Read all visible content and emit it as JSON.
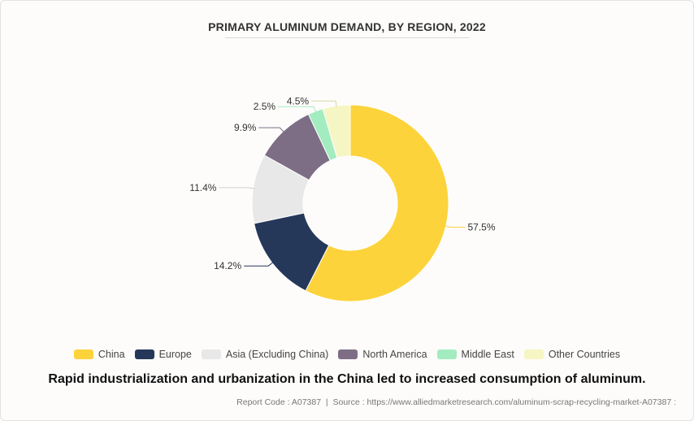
{
  "chart_data": {
    "type": "pie",
    "title": "PRIMARY ALUMINUM DEMAND, BY REGION, 2022",
    "categories": [
      "China",
      "Europe",
      "Asia (Excluding China)",
      "North America",
      "Middle East",
      "Other Countries"
    ],
    "values": [
      57.5,
      14.2,
      11.4,
      9.9,
      2.5,
      4.5
    ],
    "labels": [
      "57.5%",
      "14.2%",
      "11.4%",
      "9.9%",
      "2.5%",
      "4.5%"
    ],
    "colors": [
      "#fdd33b",
      "#26385a",
      "#e8e8e8",
      "#7d6e85",
      "#a3ecbf",
      "#f6f5c4"
    ],
    "legend_position": "bottom"
  },
  "caption": "Rapid industrialization and urbanization in the China led to increased consumption of aluminum.",
  "source": {
    "report_label": "Report Code : A07387",
    "separator": "|",
    "source_label": "Source : https://www.alliedmarketresearch.com/aluminum-scrap-recycling-market-A07387 :"
  }
}
